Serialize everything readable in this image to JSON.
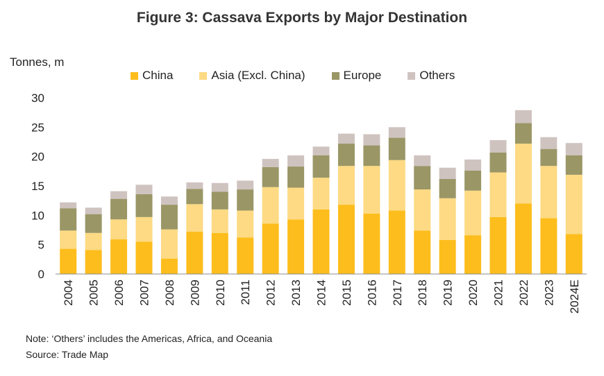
{
  "title": "Figure 3: Cassava Exports by Major Destination",
  "y_unit": "Tonnes, m",
  "colors": {
    "China": "#FDBD1C",
    "Asia (Excl. China)": "#FDDA83",
    "Europe": "#9A9666",
    "Others": "#CFC3C0"
  },
  "legend": [
    "China",
    "Asia (Excl. China)",
    "Europe",
    "Others"
  ],
  "note": "Note: ‘Others’ includes the Americas, Africa, and Oceania",
  "source": "Source: Trade Map",
  "chart_data": {
    "type": "bar",
    "stacked": true,
    "title": "Figure 3: Cassava Exports by Major Destination",
    "ylabel": "Tonnes, m",
    "ylim": [
      0,
      30
    ],
    "yticks": [
      0,
      5,
      10,
      15,
      20,
      25,
      30
    ],
    "legend_position": "top",
    "categories": [
      "2004",
      "2005",
      "2006",
      "2007",
      "2008",
      "2009",
      "2010",
      "2011",
      "2012",
      "2013",
      "2014",
      "2015",
      "2016",
      "2017",
      "2018",
      "2019",
      "2020",
      "2021",
      "2022",
      "2023",
      "2024E"
    ],
    "series": [
      {
        "name": "China",
        "values": [
          4.3,
          4.1,
          5.9,
          5.5,
          2.6,
          7.2,
          7.0,
          6.2,
          8.6,
          9.3,
          11.0,
          11.8,
          10.3,
          10.8,
          7.4,
          5.8,
          6.6,
          9.7,
          12.0,
          9.5,
          6.8
        ]
      },
      {
        "name": "Asia (Excl. China)",
        "values": [
          3.1,
          2.9,
          3.4,
          4.2,
          5.0,
          4.7,
          4.0,
          4.6,
          6.2,
          5.4,
          5.4,
          6.6,
          8.1,
          8.6,
          7.0,
          7.1,
          7.6,
          7.6,
          10.2,
          8.9,
          10.1
        ]
      },
      {
        "name": "Europe",
        "values": [
          3.8,
          3.2,
          3.5,
          3.9,
          4.2,
          2.6,
          3.0,
          3.6,
          3.4,
          3.6,
          3.8,
          3.8,
          3.5,
          3.8,
          4.0,
          3.3,
          3.4,
          3.4,
          3.5,
          2.9,
          3.3
        ]
      },
      {
        "name": "Others",
        "values": [
          1.0,
          1.1,
          1.3,
          1.6,
          1.4,
          1.1,
          1.5,
          1.5,
          1.4,
          1.9,
          1.5,
          1.7,
          1.9,
          1.8,
          1.8,
          1.9,
          1.9,
          2.1,
          2.2,
          2.0,
          2.1
        ]
      }
    ]
  }
}
